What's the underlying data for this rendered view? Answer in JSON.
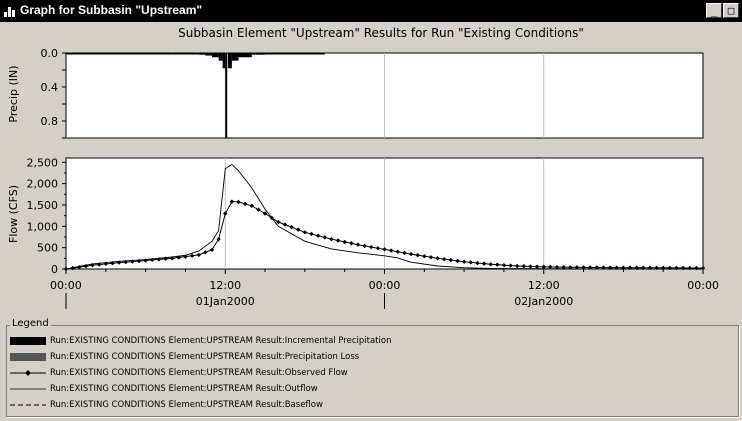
{
  "window": {
    "title": "Graph for Subbasin \"Upstream\"",
    "buttons": {
      "minimize": "_",
      "maximize": "□"
    }
  },
  "chart_data": [
    {
      "type": "area",
      "title": "Subbasin Element \"Upstream\" Results for Run \"Existing Conditions\"",
      "ylabel": "Precip (IN)",
      "xlabel": "",
      "ylim": [
        0,
        1.0
      ],
      "y_inverted": true,
      "yticks": [
        "0.0",
        "0.4",
        "0.8"
      ],
      "ytick_values": [
        0,
        0.4,
        0.8
      ],
      "x_hours": [
        0,
        3,
        6,
        8,
        9,
        10,
        10.5,
        11,
        11.5,
        11.8,
        12,
        12.2,
        12.5,
        13,
        14,
        15,
        16,
        18,
        19
      ],
      "series": [
        {
          "values": [
            0.003,
            0.003,
            0.005,
            0.008,
            0.012,
            0.02,
            0.03,
            0.05,
            0.09,
            0.18,
            1.0,
            0.18,
            0.09,
            0.05,
            0.02,
            0.01,
            0.006,
            0.004,
            0.003
          ]
        }
      ]
    },
    {
      "type": "line",
      "ylabel": "Flow (CFS)",
      "xlabel": "",
      "ylim": [
        0,
        2600
      ],
      "yticks": [
        "0",
        "500",
        "1,000",
        "1,500",
        "2,000",
        "2,500"
      ],
      "ytick_values": [
        0,
        500,
        1000,
        1500,
        2000,
        2500
      ],
      "xlim_hours": [
        0,
        48
      ],
      "xticks": [
        "00:00",
        "12:00",
        "00:00",
        "12:00",
        "00:00"
      ],
      "xtick_hours": [
        0,
        12,
        24,
        36,
        48
      ],
      "date_labels": [
        "01Jan2000",
        "02Jan2000"
      ],
      "date_label_hours": [
        12,
        36
      ],
      "series": [
        {
          "name": "Outflow",
          "x_hours": [
            0,
            2,
            4,
            6,
            8,
            9,
            10,
            11,
            11.5,
            12,
            12.5,
            13,
            14,
            15,
            16,
            18,
            20,
            22,
            24,
            25,
            26,
            28,
            30,
            32,
            34,
            36,
            40,
            44,
            48
          ],
          "values": [
            0,
            120,
            180,
            220,
            280,
            320,
            420,
            650,
            900,
            2350,
            2450,
            2300,
            1900,
            1400,
            1000,
            650,
            470,
            380,
            310,
            260,
            160,
            70,
            30,
            15,
            10,
            8,
            5,
            3,
            2
          ]
        },
        {
          "name": "Observed Flow",
          "x_hours": [
            0,
            2,
            4,
            6,
            8,
            10,
            11,
            11.5,
            12,
            12.5,
            13,
            14,
            15,
            16,
            18,
            20,
            22,
            24,
            26,
            28,
            30,
            32,
            34,
            36,
            38,
            40,
            42,
            44,
            46,
            48
          ],
          "values": [
            0,
            90,
            150,
            200,
            250,
            330,
            450,
            700,
            1300,
            1580,
            1570,
            1480,
            1300,
            1100,
            860,
            700,
            570,
            460,
            350,
            250,
            170,
            110,
            70,
            50,
            40,
            35,
            30,
            28,
            25,
            20
          ]
        }
      ]
    }
  ],
  "legend": {
    "caption": "Legend",
    "items": [
      {
        "label": "Run:EXISTING CONDITIONS Element:UPSTREAM Result:Incremental Precipitation",
        "style": "black-bar",
        "color": "#000000"
      },
      {
        "label": "Run:EXISTING CONDITIONS Element:UPSTREAM Result:Precipitation Loss",
        "style": "gray-bar",
        "color": "#555555"
      },
      {
        "label": "Run:EXISTING CONDITIONS Element:UPSTREAM Result:Observed Flow",
        "style": "line-diamond",
        "color": "#000000"
      },
      {
        "label": "Run:EXISTING CONDITIONS Element:UPSTREAM Result:Outflow",
        "style": "thin-line",
        "color": "#000000"
      },
      {
        "label": "Run:EXISTING CONDITIONS Element:UPSTREAM Result:Baseflow",
        "style": "dashed-line",
        "color": "#000000"
      }
    ]
  }
}
